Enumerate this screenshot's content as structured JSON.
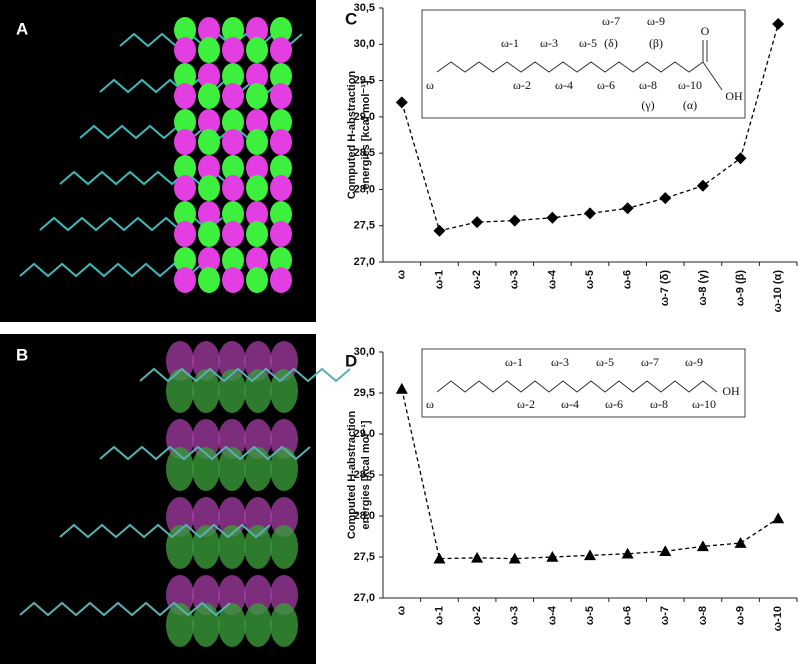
{
  "image_panels": [
    {
      "label": "A"
    },
    {
      "label": "B"
    }
  ],
  "chart_data": [
    {
      "type": "line",
      "label": "C",
      "marker": "diamond",
      "line_style": "dashed",
      "color": "#000000",
      "ylabel": [
        "Computed H-abstraction",
        "energies [kcal mol⁻¹]"
      ],
      "categories": [
        "ω",
        "ω-1",
        "ω-2",
        "ω-3",
        "ω-4",
        "ω-5",
        "ω-6",
        "ω-7 (δ)",
        "ω-8 (γ)",
        "ω-9 (β)",
        "ω-10 (α)"
      ],
      "values": [
        29.2,
        27.43,
        27.55,
        27.57,
        27.61,
        27.67,
        27.74,
        27.88,
        28.05,
        28.43,
        30.28
      ],
      "ylim": [
        27,
        30.5
      ],
      "yticks": [
        {
          "value": 27,
          "label": "27,0"
        },
        {
          "value": 27.5,
          "label": "27,5"
        },
        {
          "value": 28,
          "label": "28,0"
        },
        {
          "value": 28.5,
          "label": "28,5"
        },
        {
          "value": 29,
          "label": "29,0"
        },
        {
          "value": 29.5,
          "label": "29,5"
        },
        {
          "value": 30,
          "label": "30,0"
        },
        {
          "value": 30.5,
          "label": "30,5"
        }
      ],
      "inset": [
        "ω-7",
        "ω-9",
        "ω-1",
        "ω-3",
        "ω-5",
        "(δ)",
        "(β)",
        "O",
        "ω",
        "ω-2",
        "ω-4",
        "ω-6",
        "ω-8",
        "ω-10",
        "OH",
        "(γ)",
        "(α)"
      ]
    },
    {
      "type": "line",
      "label": "D",
      "marker": "triangle",
      "line_style": "dashed",
      "color": "#000000",
      "ylabel": [
        "Computed H-abstraction",
        "energies [kcal mol⁻¹]"
      ],
      "categories": [
        "ω",
        "ω-1",
        "ω-2",
        "ω-3",
        "ω-4",
        "ω-5",
        "ω-6",
        "ω-7",
        "ω-8",
        "ω-9",
        "ω-10"
      ],
      "values": [
        29.55,
        27.48,
        27.49,
        27.48,
        27.5,
        27.52,
        27.54,
        27.57,
        27.63,
        27.67,
        27.97
      ],
      "ylim": [
        27,
        30
      ],
      "yticks": [
        {
          "value": 27,
          "label": "27,0"
        },
        {
          "value": 27.5,
          "label": "27,5"
        },
        {
          "value": 28,
          "label": "28,0"
        },
        {
          "value": 28.5,
          "label": "28,5"
        },
        {
          "value": 29,
          "label": "29,0"
        },
        {
          "value": 29.5,
          "label": "29,5"
        },
        {
          "value": 30,
          "label": "30,0"
        }
      ],
      "inset": [
        "ω-1",
        "ω-3",
        "ω-5",
        "ω-7",
        "ω-9",
        "ω",
        "ω-2",
        "ω-4",
        "ω-6",
        "ω-8",
        "ω-10",
        "OH"
      ]
    }
  ]
}
